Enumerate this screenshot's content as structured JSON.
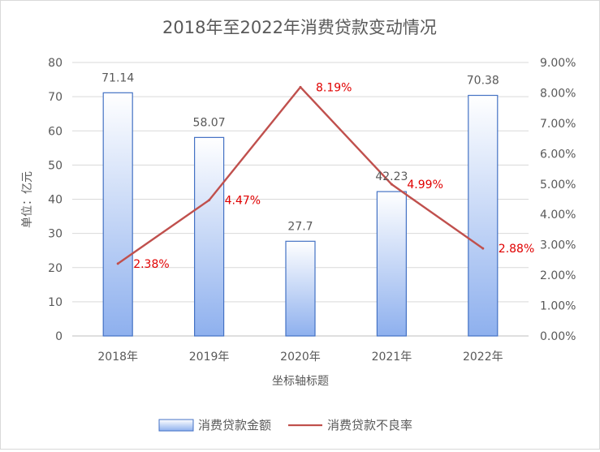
{
  "chart_data": {
    "type": "bar",
    "title": "2018年至2022年消费贷款变动情况",
    "xlabel": "坐标轴标题",
    "ylabel": "单位：亿元",
    "categories": [
      "2018年",
      "2019年",
      "2020年",
      "2021年",
      "2022年"
    ],
    "ylim": [
      0,
      80
    ],
    "y_ticks": [
      "0",
      "10",
      "20",
      "30",
      "40",
      "50",
      "60",
      "70",
      "80"
    ],
    "y2lim": [
      0,
      9
    ],
    "y2_ticks": [
      "0.00%",
      "1.00%",
      "2.00%",
      "3.00%",
      "4.00%",
      "5.00%",
      "6.00%",
      "7.00%",
      "8.00%",
      "9.00%"
    ],
    "grid": true,
    "legend_position": "bottom",
    "series": [
      {
        "name": "消费贷款金额",
        "type": "bar",
        "axis": "left",
        "values": [
          71.14,
          58.07,
          27.7,
          42.23,
          70.38
        ],
        "labels": [
          "71.14",
          "58.07",
          "27.7",
          "42.23",
          "70.38"
        ],
        "color": "#4472c4"
      },
      {
        "name": "消费贷款不良率",
        "type": "line",
        "axis": "right",
        "values": [
          2.38,
          4.47,
          8.19,
          4.99,
          2.88
        ],
        "labels": [
          "2.38%",
          "4.47%",
          "8.19%",
          "4.99%",
          "2.88%"
        ],
        "color": "#c0504d",
        "label_color": "#e00000"
      }
    ]
  }
}
